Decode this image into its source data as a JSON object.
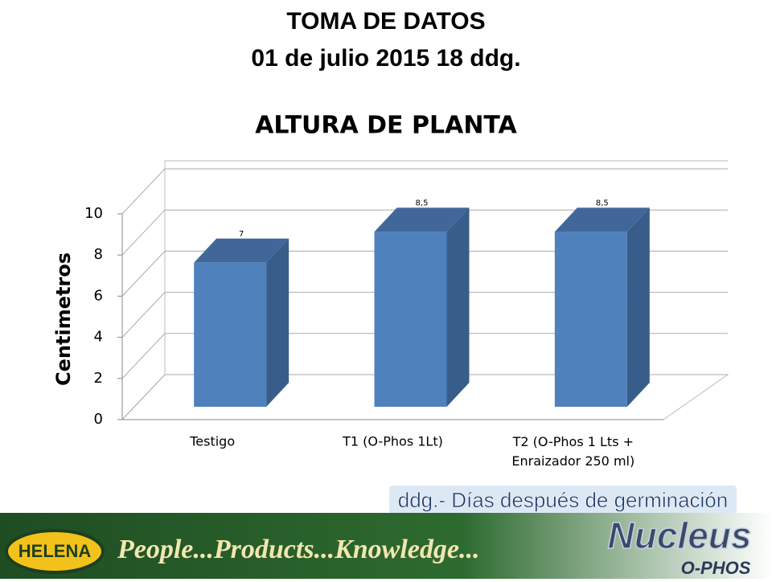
{
  "header": {
    "title": "TOMA DE DATOS",
    "subtitle": "01 de julio 2015 18 ddg."
  },
  "chart_data": {
    "type": "bar3d",
    "title": "ALTURA DE PLANTA",
    "y_label": "Centimetros",
    "categories": [
      "Testigo",
      "T1 (O-Phos 1Lt)",
      "T2 (O-Phos 1 Lts + Enraizador 250 ml)"
    ],
    "values": [
      7,
      8.5,
      8.5
    ],
    "value_labels": [
      "7",
      "8,5",
      "8,5"
    ],
    "color": "#4f81bd",
    "ylim": [
      0,
      10
    ],
    "yticks": [
      0,
      2,
      4,
      6,
      8,
      10
    ],
    "grid": true
  },
  "note": "ddg.- Días después de germinación",
  "footer": {
    "brand": "HELENA",
    "slogan": "People...Products...Knowledge...",
    "product": "Nucleus",
    "product_sub": "O-PHOS"
  }
}
